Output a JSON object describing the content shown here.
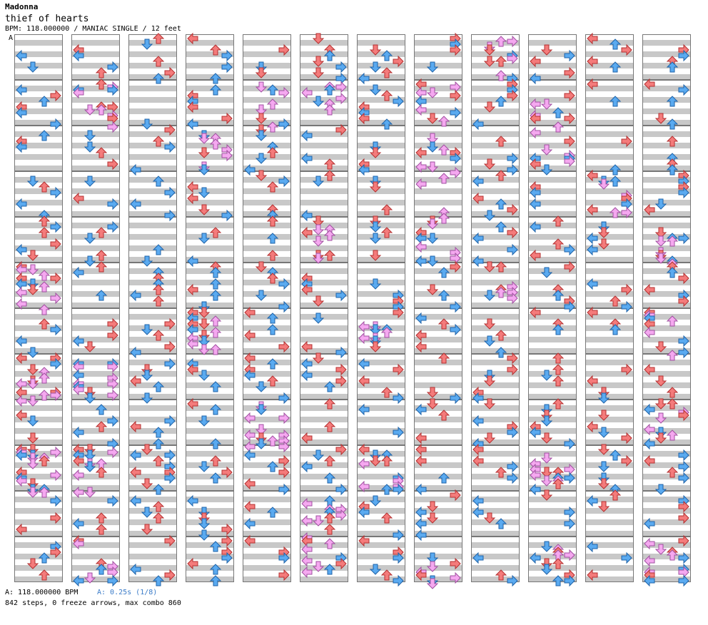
{
  "song": {
    "artist": "Madonna",
    "title": "thief of hearts",
    "meta": "BPM: 118.000000 / MANIAC SINGLE / 12 feet",
    "section_marker": "A"
  },
  "footer": {
    "bpm_note": "A: 118.000000 BPM",
    "offset_note": "A: 0.25s (1/8)",
    "stats": "842 steps, 0 freeze arrows, max combo 860"
  },
  "chart": {
    "columns": 12,
    "measures_per_column": 12,
    "lanes": [
      "left",
      "down",
      "up",
      "right"
    ],
    "colors": {
      "quarter": "#f47b7b",
      "quarter_stroke": "#b33030",
      "eighth": "#5aaaf0",
      "eighth_stroke": "#1f63a8",
      "sixteenth": "#f5a8f0",
      "sixteenth_stroke": "#a050a0",
      "band": "#c8c8c8",
      "border": "#777777"
    }
  }
}
